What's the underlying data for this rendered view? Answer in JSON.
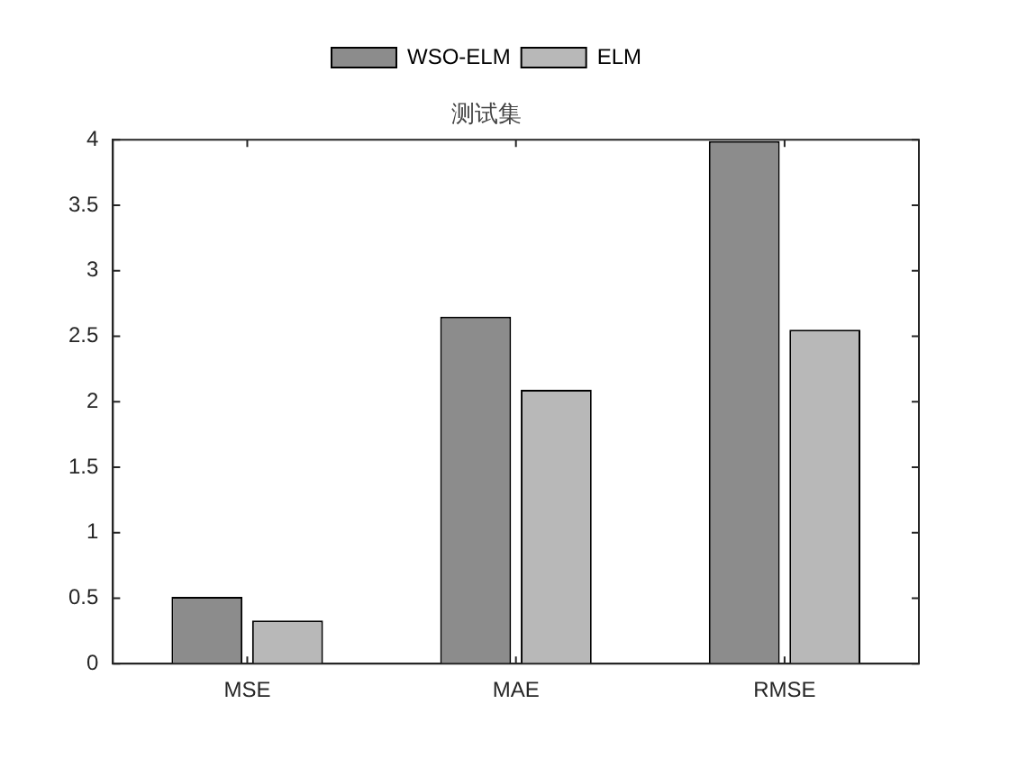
{
  "chart_data": {
    "type": "bar",
    "title": "测试集",
    "categories": [
      "MSE",
      "MAE",
      "RMSE"
    ],
    "series": [
      {
        "name": "WSO-ELM",
        "color": "#8c8c8c",
        "values": [
          0.51,
          2.65,
          3.99
        ]
      },
      {
        "name": "ELM",
        "color": "#b8b8b8",
        "values": [
          0.33,
          2.09,
          2.55
        ]
      }
    ],
    "ylim": [
      0,
      4
    ],
    "yticks": [
      0,
      0.5,
      1,
      1.5,
      2,
      2.5,
      3,
      3.5,
      4
    ],
    "grid": false,
    "legend": "top"
  }
}
